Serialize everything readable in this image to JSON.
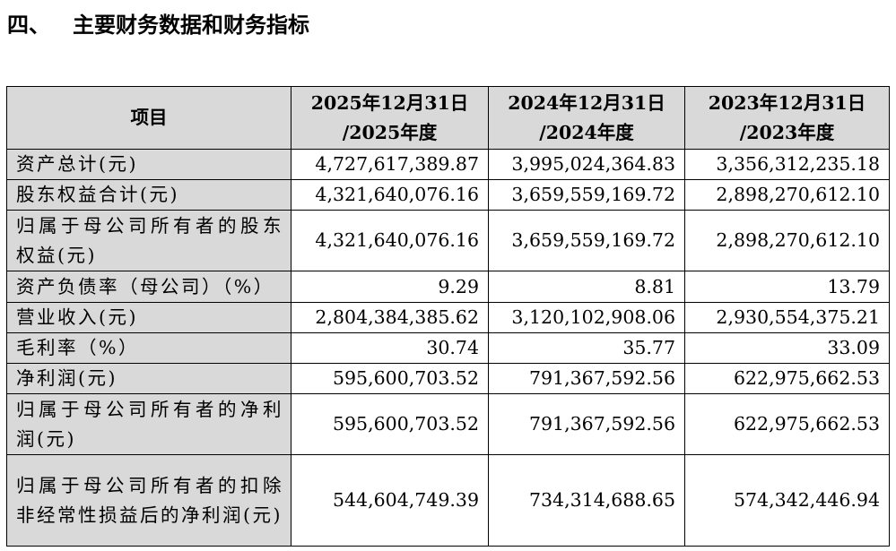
{
  "heading": {
    "number": "四、",
    "title": "主要财务数据和财务指标"
  },
  "table": {
    "header": {
      "item": "项目",
      "periods": [
        [
          "2025年12月31日",
          "/2025年度"
        ],
        [
          "2024年12月31日",
          "/2024年度"
        ],
        [
          "2023年12月31日",
          "/2023年度"
        ]
      ]
    },
    "rows": [
      {
        "label": "资产总计(元)",
        "values": [
          "4,727,617,389.87",
          "3,995,024,364.83",
          "3,356,312,235.18"
        ]
      },
      {
        "label": "股东权益合计(元)",
        "values": [
          "4,321,640,076.16",
          "3,659,559,169.72",
          "2,898,270,612.10"
        ]
      },
      {
        "label": "归属于母公司所有者的股东权益(元)",
        "values": [
          "4,321,640,076.16",
          "3,659,559,169.72",
          "2,898,270,612.10"
        ]
      },
      {
        "label": "资产负债率（母公司）（%）",
        "values": [
          "9.29",
          "8.81",
          "13.79"
        ]
      },
      {
        "label": "营业收入(元)",
        "values": [
          "2,804,384,385.62",
          "3,120,102,908.06",
          "2,930,554,375.21"
        ]
      },
      {
        "label": "毛利率（%）",
        "values": [
          "30.74",
          "35.77",
          "33.09"
        ]
      },
      {
        "label": "净利润(元)",
        "values": [
          "595,600,703.52",
          "791,367,592.56",
          "622,975,662.53"
        ]
      },
      {
        "label": "归属于母公司所有者的净利润(元)",
        "values": [
          "595,600,703.52",
          "791,367,592.56",
          "622,975,662.53"
        ]
      },
      {
        "label": "归属于母公司所有者的扣除非经常性损益后的净利润(元)",
        "values": [
          "544,604,749.39",
          "734,314,688.65",
          "574,342,446.94"
        ]
      }
    ]
  }
}
